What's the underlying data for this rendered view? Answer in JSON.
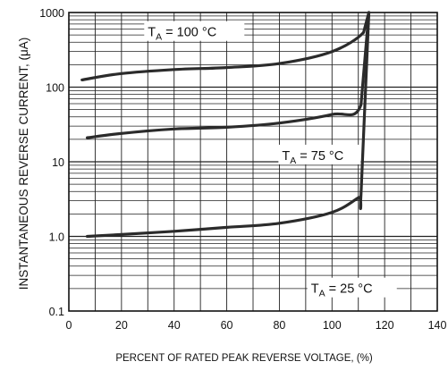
{
  "chart_data": {
    "type": "line",
    "title": "",
    "xlabel": "PERCENT OF RATED PEAK REVERSE VOLTAGE, (%)",
    "ylabel": "INSTANTANEOUS REVERSE CURRENT, (μA)",
    "xlim": [
      0,
      140
    ],
    "ylim": [
      0.1,
      1000
    ],
    "yscale": "log",
    "grid": true,
    "x_ticks": [
      "0",
      "20",
      "40",
      "60",
      "80",
      "100",
      "120",
      "140"
    ],
    "y_ticks": [
      "0.1",
      "1.0",
      "10",
      "100",
      "1000"
    ],
    "series": [
      {
        "name": "T_A = 100 °C",
        "points": [
          [
            5,
            125
          ],
          [
            20,
            152
          ],
          [
            40,
            172
          ],
          [
            60,
            183
          ],
          [
            80,
            207
          ],
          [
            100,
            300
          ],
          [
            112,
            540
          ],
          [
            114,
            1000
          ]
        ]
      },
      {
        "name": "T_A = 75 °C",
        "points": [
          [
            7,
            21
          ],
          [
            20,
            24
          ],
          [
            40,
            27.5
          ],
          [
            60,
            29
          ],
          [
            80,
            33
          ],
          [
            100,
            43
          ],
          [
            111,
            58
          ],
          [
            114,
            1000
          ]
        ]
      },
      {
        "name": "T_A = 25 °C",
        "points": [
          [
            7,
            1.0
          ],
          [
            20,
            1.06
          ],
          [
            40,
            1.17
          ],
          [
            60,
            1.32
          ],
          [
            80,
            1.5
          ],
          [
            100,
            2.1
          ],
          [
            110,
            3.3
          ],
          [
            111,
            3.6
          ],
          [
            114,
            1000
          ]
        ]
      }
    ],
    "annotations": [
      {
        "main": "T",
        "sub": "A",
        "rest": " = 100 °C",
        "x": 30,
        "y": 520
      },
      {
        "main": "T",
        "sub": "A",
        "rest": " = 75 °C",
        "x": 81,
        "y": 11.5
      },
      {
        "main": "T",
        "sub": "A",
        "rest": " = 25 °C",
        "x": 92,
        "y": 0.19
      }
    ]
  }
}
